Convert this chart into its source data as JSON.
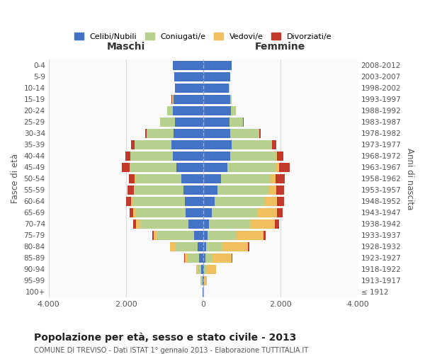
{
  "age_groups": [
    "100+",
    "95-99",
    "90-94",
    "85-89",
    "80-84",
    "75-79",
    "70-74",
    "65-69",
    "60-64",
    "55-59",
    "50-54",
    "45-49",
    "40-44",
    "35-39",
    "30-34",
    "25-29",
    "20-24",
    "15-19",
    "10-14",
    "5-9",
    "0-4"
  ],
  "birth_years": [
    "≤ 1912",
    "1913-1917",
    "1918-1922",
    "1923-1927",
    "1928-1932",
    "1933-1937",
    "1938-1942",
    "1943-1947",
    "1948-1952",
    "1953-1957",
    "1958-1962",
    "1963-1967",
    "1968-1972",
    "1973-1977",
    "1978-1982",
    "1983-1987",
    "1988-1992",
    "1993-1997",
    "1998-2002",
    "2003-2007",
    "2008-2012"
  ],
  "maschi": {
    "celibi": [
      10,
      20,
      50,
      100,
      150,
      230,
      380,
      450,
      480,
      500,
      560,
      700,
      780,
      820,
      760,
      730,
      780,
      760,
      720,
      740,
      780
    ],
    "coniugati": [
      5,
      25,
      80,
      280,
      570,
      950,
      1250,
      1300,
      1350,
      1280,
      1200,
      1200,
      1100,
      950,
      700,
      380,
      150,
      50,
      10,
      5,
      2
    ],
    "vedovi": [
      4,
      15,
      40,
      100,
      130,
      100,
      100,
      60,
      40,
      20,
      10,
      5,
      5,
      3,
      2,
      2,
      2,
      1,
      1,
      1,
      0
    ],
    "divorziati": [
      0,
      0,
      5,
      10,
      15,
      40,
      80,
      100,
      130,
      150,
      160,
      200,
      120,
      90,
      40,
      10,
      5,
      2,
      1,
      0,
      0
    ]
  },
  "femmine": {
    "nubili": [
      5,
      15,
      30,
      60,
      80,
      110,
      160,
      220,
      300,
      380,
      470,
      620,
      700,
      730,
      700,
      680,
      720,
      700,
      670,
      700,
      730
    ],
    "coniugate": [
      4,
      15,
      50,
      180,
      400,
      750,
      1050,
      1200,
      1300,
      1320,
      1280,
      1280,
      1200,
      1050,
      750,
      350,
      120,
      40,
      8,
      3,
      1
    ],
    "vedove": [
      5,
      60,
      250,
      500,
      680,
      700,
      650,
      500,
      320,
      200,
      120,
      60,
      20,
      10,
      5,
      3,
      2,
      1,
      1,
      1,
      0
    ],
    "divorziate": [
      0,
      0,
      5,
      10,
      30,
      50,
      100,
      130,
      170,
      200,
      250,
      280,
      150,
      100,
      40,
      10,
      5,
      2,
      1,
      0,
      0
    ]
  },
  "colors": {
    "celibi_nubili": "#4472c4",
    "coniugati_e": "#b8d08d",
    "vedovi_e": "#f0c060",
    "divorziati_e": "#c0392b"
  },
  "title": "Popolazione per età, sesso e stato civile - 2013",
  "subtitle": "COMUNE DI TREVISO - Dati ISTAT 1° gennaio 2013 - Elaborazione TUTTITALIA.IT",
  "xlabel_left": "Maschi",
  "xlabel_right": "Femmine",
  "ylabel_left": "Fasce di età",
  "ylabel_right": "Anni di nascita",
  "xlim": 4000,
  "legend_labels": [
    "Celibi/Nubili",
    "Coniugati/e",
    "Vedovi/e",
    "Divorziati/e"
  ],
  "bg_color": "#ffffff"
}
